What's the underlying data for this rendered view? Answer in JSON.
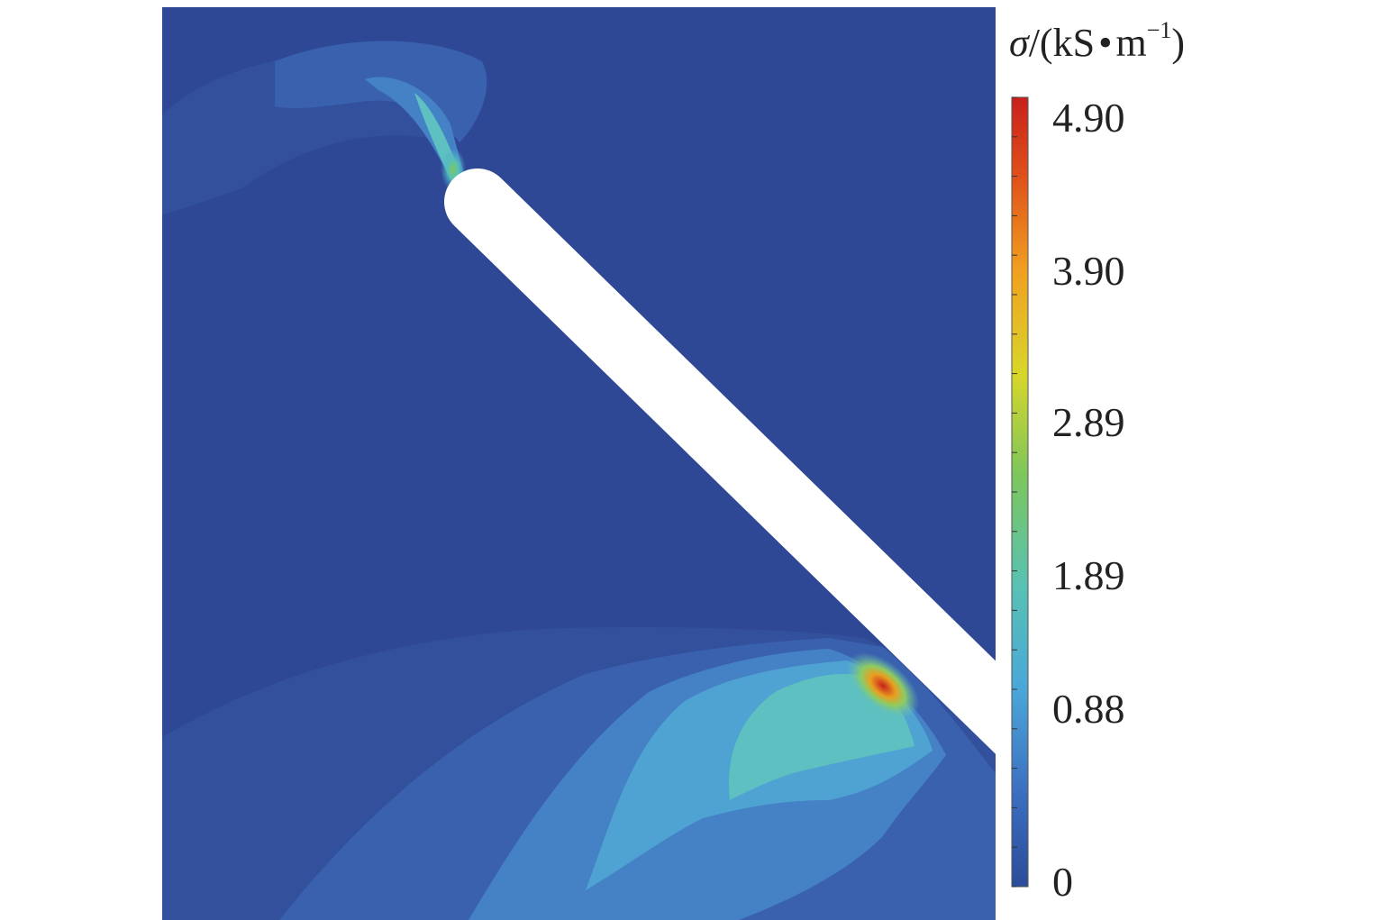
{
  "figure": {
    "title": {
      "symbol": "σ",
      "sep": "/(kS",
      "dot": "•",
      "unit": "m",
      "exp": "−1",
      "close": ")"
    },
    "colorbar": {
      "min": 0,
      "max": 4.9,
      "tick_labels": [
        "4.90",
        "3.90",
        "2.89",
        "1.89",
        "0.88",
        "0"
      ],
      "tick_values": [
        4.9,
        3.9,
        2.89,
        1.89,
        0.88,
        0
      ],
      "colors": [
        "#2b4c9a",
        "#3c6fc0",
        "#4aa7d8",
        "#58c1b4",
        "#7cc65c",
        "#d8d62a",
        "#f0a020",
        "#e0501a",
        "#c8201c"
      ]
    },
    "field_colors": {
      "background": "#2f4895",
      "level1": "#33509d",
      "level2": "#3a61ae",
      "level3": "#4481c5",
      "level4": "#4fa3d2",
      "level5": "#5ec0c0",
      "hot": "#d82218",
      "conductor": "#ffffff"
    }
  }
}
